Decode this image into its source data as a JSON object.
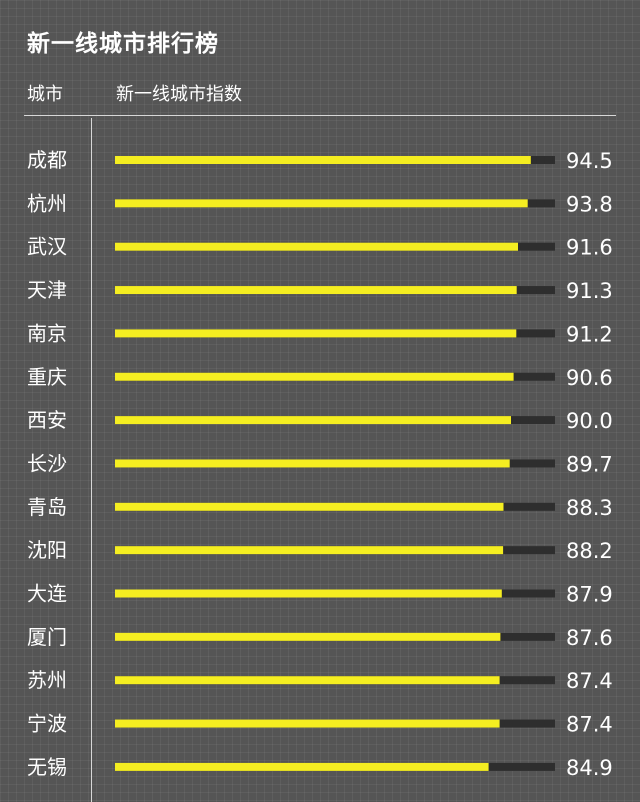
{
  "chart_data": {
    "type": "bar",
    "orientation": "horizontal",
    "title": "新一线城市排行榜",
    "column_headers": {
      "category": "城市",
      "value": "新一线城市指数"
    },
    "categories": [
      "成都",
      "杭州",
      "武汉",
      "天津",
      "南京",
      "重庆",
      "西安",
      "长沙",
      "青岛",
      "沈阳",
      "大连",
      "厦门",
      "苏州",
      "宁波",
      "无锡"
    ],
    "values": [
      94.5,
      93.8,
      91.6,
      91.3,
      91.2,
      90.6,
      90.0,
      89.7,
      88.3,
      88.2,
      87.9,
      87.6,
      87.4,
      87.4,
      84.9
    ],
    "value_labels": [
      "94.5",
      "93.8",
      "91.6",
      "91.3",
      "91.2",
      "90.6",
      "90.0",
      "89.7",
      "88.3",
      "88.2",
      "87.9",
      "87.6",
      "87.4",
      "87.4",
      "84.9"
    ],
    "xlim": [
      0,
      100
    ],
    "grid": false,
    "legend": "none",
    "colors": {
      "bar": "#f5ee21",
      "track": "#2e2e2e",
      "background": "#555555",
      "text": "#ffffff"
    }
  }
}
